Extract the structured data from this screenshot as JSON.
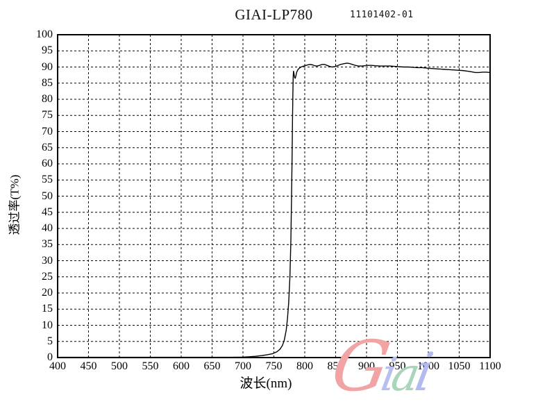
{
  "header": {
    "title": "GIAI-LP780",
    "serial": "11101402-01"
  },
  "chart_data": {
    "type": "line",
    "title": "GIAI-LP780",
    "xlabel": "波长(nm)",
    "ylabel": "透过率(T%)",
    "xlim": [
      400,
      1100
    ],
    "ylim": [
      0,
      100
    ],
    "x_ticks": [
      400,
      450,
      500,
      550,
      600,
      650,
      700,
      750,
      800,
      850,
      900,
      950,
      1000,
      1050,
      1100
    ],
    "y_ticks": [
      0,
      5,
      10,
      15,
      20,
      25,
      30,
      35,
      40,
      45,
      50,
      55,
      60,
      65,
      70,
      75,
      80,
      85,
      90,
      95,
      100
    ],
    "grid": "dashed",
    "legend": "none",
    "line_color": "#000000",
    "series": [
      {
        "name": "transmittance",
        "points": [
          [
            400,
            0.1
          ],
          [
            450,
            0.1
          ],
          [
            500,
            0.1
          ],
          [
            550,
            0.1
          ],
          [
            600,
            0.1
          ],
          [
            650,
            0.1
          ],
          [
            680,
            0.1
          ],
          [
            700,
            0.15
          ],
          [
            710,
            0.25
          ],
          [
            720,
            0.4
          ],
          [
            730,
            0.6
          ],
          [
            740,
            0.9
          ],
          [
            748,
            1.2
          ],
          [
            755,
            1.8
          ],
          [
            760,
            2.6
          ],
          [
            764,
            3.8
          ],
          [
            767,
            5.5
          ],
          [
            770,
            8.5
          ],
          [
            772,
            12
          ],
          [
            774,
            17
          ],
          [
            776,
            25
          ],
          [
            777.5,
            36
          ],
          [
            778.5,
            48
          ],
          [
            779.5,
            62
          ],
          [
            780.2,
            74
          ],
          [
            780.8,
            82
          ],
          [
            781.3,
            87
          ],
          [
            781.8,
            88.7
          ],
          [
            782.5,
            88.0
          ],
          [
            783.5,
            86.8
          ],
          [
            784.5,
            86.5
          ],
          [
            785.5,
            87.1
          ],
          [
            787,
            88.4
          ],
          [
            789,
            89.2
          ],
          [
            791,
            89.6
          ],
          [
            794,
            90.0
          ],
          [
            797,
            90.2
          ],
          [
            800,
            90.4
          ],
          [
            804,
            90.6
          ],
          [
            808,
            90.8
          ],
          [
            812,
            90.7
          ],
          [
            816,
            90.4
          ],
          [
            820,
            90.3
          ],
          [
            824,
            90.5
          ],
          [
            828,
            90.8
          ],
          [
            832,
            90.8
          ],
          [
            836,
            90.5
          ],
          [
            840,
            90.2
          ],
          [
            844,
            90.0
          ],
          [
            848,
            90.1
          ],
          [
            853,
            90.4
          ],
          [
            858,
            90.8
          ],
          [
            863,
            91.0
          ],
          [
            868,
            91.2
          ],
          [
            872,
            91.1
          ],
          [
            877,
            90.8
          ],
          [
            882,
            90.5
          ],
          [
            887,
            90.3
          ],
          [
            892,
            90.3
          ],
          [
            897,
            90.4
          ],
          [
            902,
            90.5
          ],
          [
            908,
            90.5
          ],
          [
            915,
            90.4
          ],
          [
            922,
            90.3
          ],
          [
            930,
            90.3
          ],
          [
            938,
            90.3
          ],
          [
            945,
            90.2
          ],
          [
            952,
            90.1
          ],
          [
            960,
            90.0
          ],
          [
            968,
            90.0
          ],
          [
            975,
            89.9
          ],
          [
            982,
            89.8
          ],
          [
            990,
            89.8
          ],
          [
            996,
            89.7
          ],
          [
            1000,
            89.6
          ],
          [
            1008,
            89.5
          ],
          [
            1016,
            89.4
          ],
          [
            1024,
            89.3
          ],
          [
            1032,
            89.2
          ],
          [
            1040,
            89.1
          ],
          [
            1048,
            89.0
          ],
          [
            1056,
            88.9
          ],
          [
            1064,
            88.7
          ],
          [
            1070,
            88.5
          ],
          [
            1076,
            88.3
          ],
          [
            1082,
            88.3
          ],
          [
            1088,
            88.4
          ],
          [
            1094,
            88.4
          ],
          [
            1100,
            88.3
          ]
        ]
      }
    ]
  },
  "watermark": {
    "text": "Giai",
    "letters": [
      {
        "char": "G",
        "color": "#f2a4a4"
      },
      {
        "char": "i",
        "color": "#b7bfee"
      },
      {
        "char": "a",
        "color": "#a9d5ba"
      },
      {
        "char": "i",
        "color": "#b4baf0"
      }
    ]
  }
}
